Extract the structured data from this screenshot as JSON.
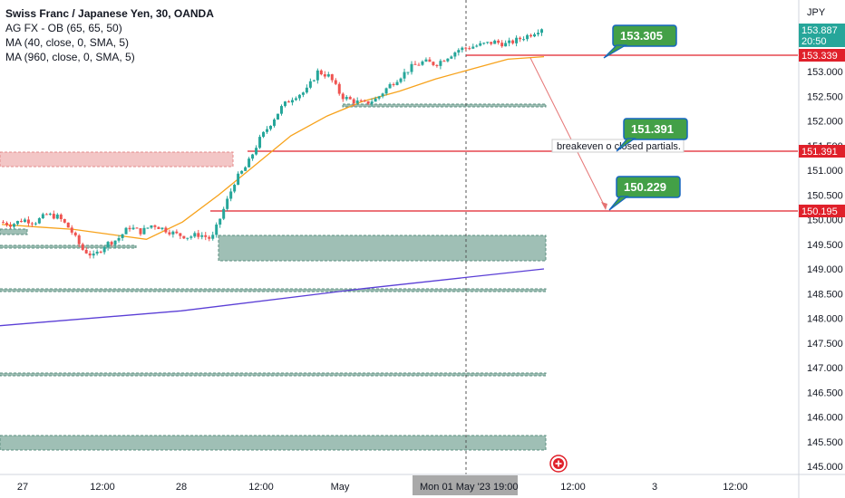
{
  "legend": {
    "title": "Swiss Franc / Japanese Yen, 30, OANDA",
    "line1": "AG FX - OB (65, 65, 50)",
    "line2": "MA (40, close, 0, SMA, 5)",
    "line3": "MA (960, close, 0, SMA, 5)"
  },
  "axis": {
    "currency": "JPY",
    "y_ticks": [
      "153.000",
      "152.500",
      "152.000",
      "151.500",
      "151.000",
      "150.500",
      "150.000",
      "149.500",
      "149.000",
      "148.500",
      "148.000",
      "147.500",
      "147.000",
      "146.500",
      "146.000",
      "145.500",
      "145.000"
    ],
    "x_ticks": [
      "27",
      "12:00",
      "28",
      "12:00",
      "May",
      "12:00",
      "3",
      "12:00"
    ],
    "crosshair_label": "Mon 01 May '23   19:00"
  },
  "price_labels": {
    "current": "153.887",
    "countdown": "20:50",
    "line_a": "153.339",
    "line_b": "151.391",
    "line_c": "150.195"
  },
  "annotations": {
    "bubble_top": "153.305",
    "bubble_mid": "151.391",
    "bubble_low": "150.229",
    "note": "breakeven o closed partials."
  },
  "colors": {
    "up": "#26a69a",
    "down": "#ef5350",
    "ma40": "#f7a21b",
    "ma960": "#5b3fd6",
    "hline": "#e0202a",
    "bubble": "#43a047",
    "bubble_border": "#1565c0",
    "box_fill": "#9fbfb5"
  },
  "chart_data": {
    "type": "candlestick",
    "symbol": "Swiss Franc / Japanese Yen, 30, OANDA",
    "ylim": [
      145.0,
      154.5
    ],
    "horizontal_levels": [
      153.339,
      151.391,
      150.195
    ],
    "current_price": 153.887,
    "price_path": [
      149.95,
      149.9,
      150.0,
      149.95,
      150.1,
      150.05,
      149.8,
      149.4,
      149.25,
      149.5,
      149.6,
      149.85,
      149.75,
      149.9,
      149.8,
      149.7,
      149.65,
      149.7,
      149.6,
      150.2,
      150.8,
      151.1,
      151.6,
      151.95,
      152.3,
      152.5,
      152.6,
      153.0,
      152.9,
      152.5,
      152.4,
      152.35,
      152.45,
      152.7,
      152.9,
      153.1,
      153.2,
      153.15,
      153.3,
      153.45,
      153.5,
      153.55,
      153.6,
      153.55,
      153.65,
      153.75,
      153.887
    ],
    "ma40_path": [
      149.9,
      149.85,
      149.8,
      149.7,
      149.6,
      149.95,
      150.5,
      151.1,
      151.7,
      152.1,
      152.4,
      152.6,
      152.85,
      153.05,
      153.25,
      153.3
    ],
    "ma960_path": [
      147.85,
      148.15,
      148.6,
      149.0
    ]
  }
}
